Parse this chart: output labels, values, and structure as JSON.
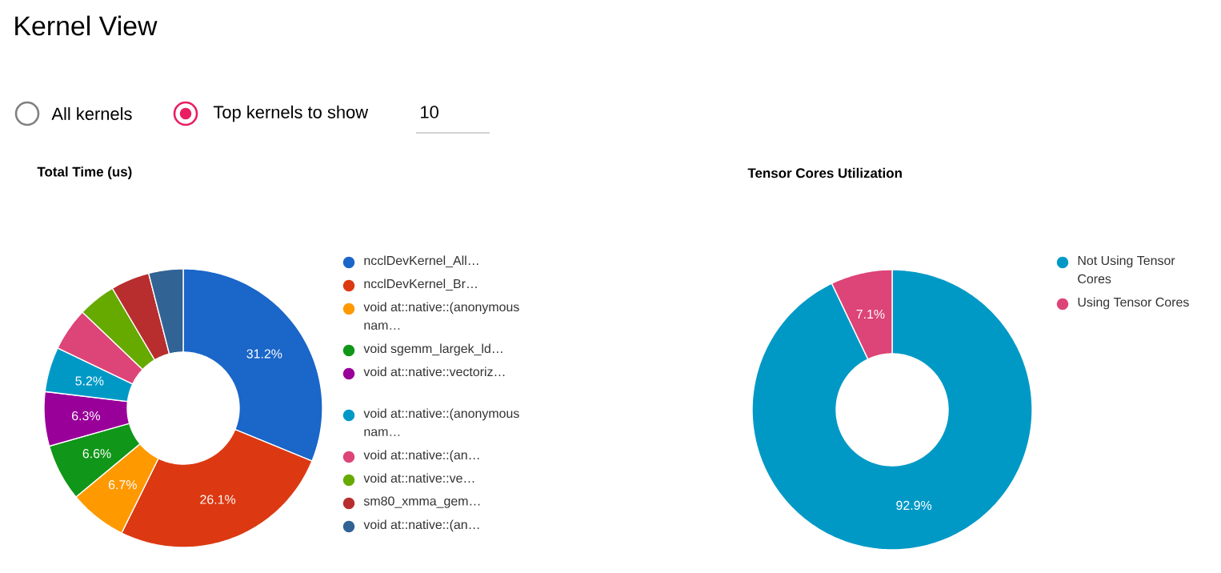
{
  "chart_data": [
    {
      "type": "other",
      "title": "Kernel View",
      "annotations": [
        "All kernels",
        "Top kernels to show",
        "10"
      ]
    },
    {
      "type": "donut",
      "title": "Total Time (us)",
      "legend": "right",
      "categories": [
        "ncclDevKernel_All…",
        "ncclDevKernel_Br…",
        "void at::native::(anonymous nam…",
        "void sgemm_largek_ld…",
        "void at::native::vectoriz…",
        "void at::native::(anonymous nam…",
        "void at::native::(an…",
        "void at::native::ve…",
        "sm80_xmma_gem…",
        "void at::native::(an…"
      ],
      "values": [
        31.2,
        26.1,
        6.7,
        6.6,
        6.3,
        5.2,
        5.0,
        4.4,
        4.5,
        4.0
      ],
      "value_labels": [
        "31.2%",
        "26.1%",
        "6.7%",
        "6.6%",
        "6.3%",
        "5.2%",
        null,
        null,
        null,
        null
      ],
      "colors": [
        "#1a66c9",
        "#dc3912",
        "#ff9900",
        "#109618",
        "#990099",
        "#0099c6",
        "#dd4477",
        "#66aa00",
        "#b82e2e",
        "#316395"
      ]
    },
    {
      "type": "donut",
      "title": "Tensor Cores Utilization",
      "legend": "right",
      "categories": [
        "Not Using Tensor Cores",
        "Using Tensor Cores"
      ],
      "values": [
        92.9,
        7.1
      ],
      "value_labels": [
        "92.9%",
        "7.1%"
      ],
      "colors": [
        "#0099c6",
        "#dd4477"
      ]
    }
  ]
}
